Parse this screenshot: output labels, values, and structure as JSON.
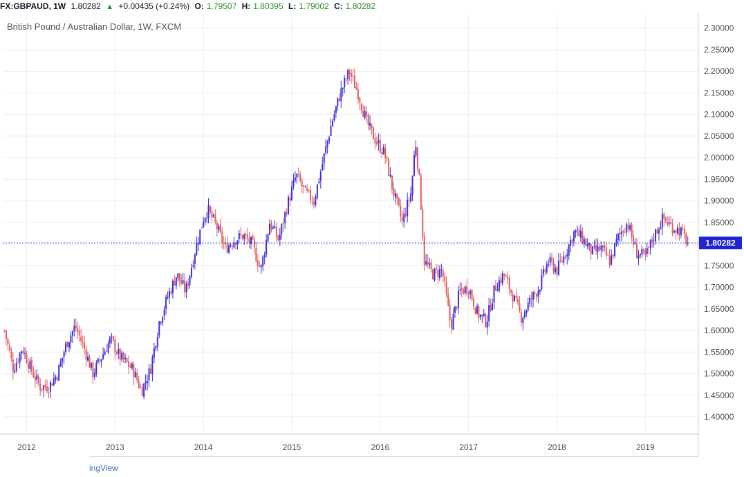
{
  "header": {
    "symbol": "FX:GBPAUD, 1W",
    "last": "1.80282",
    "change": "+0.00435 (+0.24%)",
    "o_label": "O:",
    "o_value": "1.79507",
    "h_label": "H:",
    "h_value": "1.80395",
    "l_label": "L:",
    "l_value": "1.79002",
    "c_label": "C:",
    "c_value": "1.80282",
    "up_arrow_icon": "triangle-up-icon"
  },
  "footer": {
    "brand_partial": "ingView"
  },
  "colors": {
    "up": "#3b2de0",
    "down": "#e25c5c",
    "price_line": "#2323d6",
    "grid": "#e9edf2"
  },
  "chart_data": {
    "type": "candlestick",
    "title": "British Pound / Australian Dollar, 1W, FXCM",
    "last_price": 1.80282,
    "last_price_label": "1.80282",
    "ylim": [
      1.36,
      2.33
    ],
    "y_ticks": [
      "1.40000",
      "1.45000",
      "1.50000",
      "1.55000",
      "1.60000",
      "1.65000",
      "1.70000",
      "1.75000",
      "1.80000",
      "1.85000",
      "1.90000",
      "1.95000",
      "2.00000",
      "2.05000",
      "2.10000",
      "2.15000",
      "2.20000",
      "2.25000",
      "2.30000"
    ],
    "x_ticks": [
      "2012",
      "2013",
      "2014",
      "2015",
      "2016",
      "2017",
      "2018",
      "2019"
    ],
    "x_tick_years": [
      2012,
      2013,
      2014,
      2015,
      2016,
      2017,
      2018,
      2019
    ],
    "xlim": [
      2011.73,
      2019.6
    ],
    "series": [
      {
        "values": [
          [
            2011.75,
            1.6
          ],
          [
            2011.85,
            1.51
          ],
          [
            2011.95,
            1.56
          ],
          [
            2012.05,
            1.51
          ],
          [
            2012.15,
            1.47
          ],
          [
            2012.25,
            1.47
          ],
          [
            2012.35,
            1.5
          ],
          [
            2012.45,
            1.57
          ],
          [
            2012.55,
            1.61
          ],
          [
            2012.65,
            1.56
          ],
          [
            2012.75,
            1.5
          ],
          [
            2012.85,
            1.54
          ],
          [
            2012.95,
            1.58
          ],
          [
            2013.05,
            1.54
          ],
          [
            2013.1,
            1.53
          ],
          [
            2013.2,
            1.51
          ],
          [
            2013.3,
            1.46
          ],
          [
            2013.4,
            1.51
          ],
          [
            2013.5,
            1.62
          ],
          [
            2013.6,
            1.68
          ],
          [
            2013.7,
            1.73
          ],
          [
            2013.8,
            1.69
          ],
          [
            2013.9,
            1.78
          ],
          [
            2014.0,
            1.86
          ],
          [
            2014.05,
            1.88
          ],
          [
            2014.15,
            1.84
          ],
          [
            2014.25,
            1.79
          ],
          [
            2014.35,
            1.81
          ],
          [
            2014.45,
            1.82
          ],
          [
            2014.55,
            1.8
          ],
          [
            2014.65,
            1.74
          ],
          [
            2014.75,
            1.85
          ],
          [
            2014.85,
            1.81
          ],
          [
            2014.95,
            1.89
          ],
          [
            2015.05,
            1.96
          ],
          [
            2015.15,
            1.92
          ],
          [
            2015.25,
            1.9
          ],
          [
            2015.35,
            1.99
          ],
          [
            2015.45,
            2.08
          ],
          [
            2015.55,
            2.15
          ],
          [
            2015.65,
            2.2
          ],
          [
            2015.75,
            2.15
          ],
          [
            2015.85,
            2.08
          ],
          [
            2015.95,
            2.04
          ],
          [
            2016.05,
            2.01
          ],
          [
            2016.15,
            1.92
          ],
          [
            2016.25,
            1.85
          ],
          [
            2016.35,
            1.92
          ],
          [
            2016.4,
            2.04
          ],
          [
            2016.45,
            1.93
          ],
          [
            2016.5,
            1.76
          ],
          [
            2016.6,
            1.73
          ],
          [
            2016.7,
            1.74
          ],
          [
            2016.8,
            1.61
          ],
          [
            2016.9,
            1.69
          ],
          [
            2017.0,
            1.7
          ],
          [
            2017.1,
            1.64
          ],
          [
            2017.2,
            1.62
          ],
          [
            2017.3,
            1.7
          ],
          [
            2017.4,
            1.73
          ],
          [
            2017.5,
            1.68
          ],
          [
            2017.6,
            1.63
          ],
          [
            2017.7,
            1.67
          ],
          [
            2017.8,
            1.7
          ],
          [
            2017.9,
            1.76
          ],
          [
            2018.0,
            1.74
          ],
          [
            2018.1,
            1.78
          ],
          [
            2018.2,
            1.83
          ],
          [
            2018.3,
            1.81
          ],
          [
            2018.4,
            1.78
          ],
          [
            2018.5,
            1.79
          ],
          [
            2018.6,
            1.76
          ],
          [
            2018.7,
            1.82
          ],
          [
            2018.8,
            1.85
          ],
          [
            2018.9,
            1.78
          ],
          [
            2019.0,
            1.77
          ],
          [
            2019.1,
            1.82
          ],
          [
            2019.2,
            1.86
          ],
          [
            2019.3,
            1.84
          ],
          [
            2019.4,
            1.83
          ],
          [
            2019.48,
            1.803
          ]
        ]
      }
    ]
  }
}
